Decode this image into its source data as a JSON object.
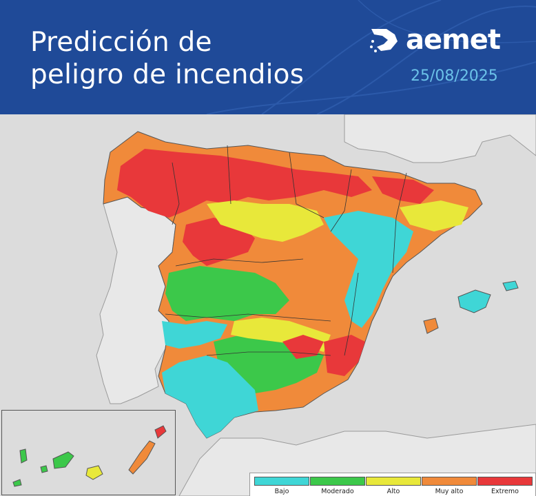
{
  "header": {
    "title_line1": "Predicción de",
    "title_line2": "peligro de incendios",
    "brand": "aemet",
    "brand_icon": "aemet-logo-icon",
    "date": "25/08/2025",
    "background_color": "#1f4a98",
    "date_color": "#6bc2e8"
  },
  "map": {
    "region": "Península Ibérica, Baleares y Canarias",
    "canary_inset": true
  },
  "legend": {
    "items": [
      {
        "label": "Bajo",
        "color": "#3fd6d6"
      },
      {
        "label": "Moderado",
        "color": "#3cc84a"
      },
      {
        "label": "Alto",
        "color": "#e8e83a"
      },
      {
        "label": "Muy alto",
        "color": "#f08a3a"
      },
      {
        "label": "Extremo",
        "color": "#e8383a"
      }
    ]
  }
}
